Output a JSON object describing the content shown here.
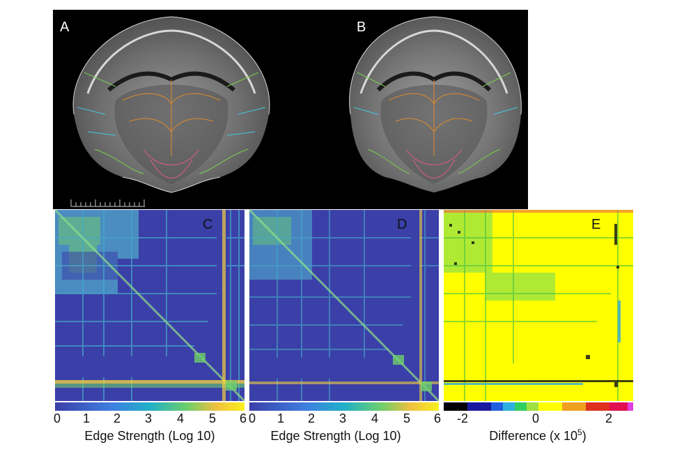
{
  "panels": {
    "a": {
      "label": "A"
    },
    "b": {
      "label": "B"
    },
    "c": {
      "label": "C"
    },
    "d": {
      "label": "D"
    },
    "e": {
      "label": "E"
    }
  },
  "colorbar_c": {
    "ticks": [
      "0",
      "1",
      "2",
      "3",
      "4",
      "5",
      "6"
    ],
    "label": "Edge Strength (Log 10)"
  },
  "colorbar_d": {
    "ticks": [
      "0",
      "1",
      "2",
      "3",
      "4",
      "5",
      "6"
    ],
    "label": "Edge Strength (Log 10)"
  },
  "colorbar_e": {
    "ticks": [
      "-2",
      "0",
      "2"
    ],
    "label_main": "Difference (x 10",
    "label_exp": "5",
    "label_close": ")"
  },
  "colors": {
    "background": "#000000",
    "matrix_low": "#3b3fa8",
    "difference_bg": "#ffff00"
  }
}
